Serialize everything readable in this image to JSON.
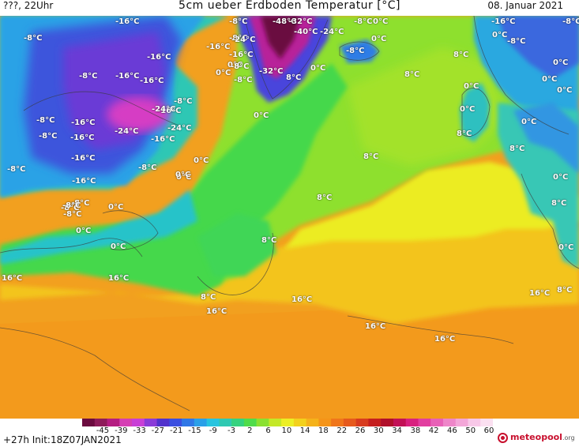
{
  "header": {
    "left_text": "???, 22Uhr",
    "title": "5cm ueber Erdboden Temperatur [°C]",
    "date": "08. Januar 2021"
  },
  "map": {
    "labels": [
      {
        "text": "-16°C"
      },
      {
        "text": "-8°C"
      },
      {
        "text": "-48°C"
      },
      {
        "text": "-32°C"
      },
      {
        "text": "-8°C"
      },
      {
        "text": "0°C"
      },
      {
        "text": "-16°C"
      },
      {
        "text": "-8°C"
      },
      {
        "text": "-8°C"
      },
      {
        "text": "-24°C"
      },
      {
        "text": "-40°C"
      },
      {
        "text": "-24°C"
      },
      {
        "text": "-8°C"
      },
      {
        "text": "0°C"
      },
      {
        "text": "-16°C"
      },
      {
        "text": "-16°C"
      },
      {
        "text": "-16°C"
      },
      {
        "text": "-8°C"
      },
      {
        "text": "0°C"
      },
      {
        "text": "-8°C"
      },
      {
        "text": "-16°C"
      },
      {
        "text": "-8°C"
      },
      {
        "text": "8°C"
      },
      {
        "text": "0°C"
      },
      {
        "text": "-8°C"
      },
      {
        "text": "-16°C"
      },
      {
        "text": "-16°C"
      },
      {
        "text": "0°C"
      },
      {
        "text": "-8°C"
      },
      {
        "text": "-32°C"
      },
      {
        "text": "8°C"
      },
      {
        "text": "0°C"
      },
      {
        "text": "8°C"
      },
      {
        "text": "0°C"
      },
      {
        "text": "-24°C"
      },
      {
        "text": "-16°C"
      },
      {
        "text": "0°C"
      },
      {
        "text": "-8°C"
      },
      {
        "text": "-8°C"
      },
      {
        "text": "-24°C"
      },
      {
        "text": "-24°C"
      },
      {
        "text": "0°C"
      },
      {
        "text": "0°C"
      },
      {
        "text": "0°C"
      },
      {
        "text": "-8°C"
      },
      {
        "text": "-16°C"
      },
      {
        "text": "-16°C"
      },
      {
        "text": "0°C"
      },
      {
        "text": "8°C"
      },
      {
        "text": "-16°C"
      },
      {
        "text": "-8°C"
      },
      {
        "text": "8°C"
      },
      {
        "text": "8°C"
      },
      {
        "text": "-8°C"
      },
      {
        "text": "-16°C"
      },
      {
        "text": "-8°C"
      },
      {
        "text": "0°C"
      },
      {
        "text": "0°C"
      },
      {
        "text": "0°C"
      },
      {
        "text": "-8°C"
      },
      {
        "text": "0°C"
      },
      {
        "text": "8°C"
      },
      {
        "text": "0°C"
      },
      {
        "text": "-8°C"
      },
      {
        "text": "-8°C"
      },
      {
        "text": "0°C"
      },
      {
        "text": "8°C"
      },
      {
        "text": "0°C"
      },
      {
        "text": "0°C"
      },
      {
        "text": "8°C"
      },
      {
        "text": "0°C"
      },
      {
        "text": "16°C"
      },
      {
        "text": "16°C"
      },
      {
        "text": "8°C"
      },
      {
        "text": "16°C"
      },
      {
        "text": "16°C"
      },
      {
        "text": "8°C"
      },
      {
        "text": "16°C"
      },
      {
        "text": "16°C"
      },
      {
        "text": "16°C"
      }
    ]
  },
  "colorbar": {
    "tick_labels": [
      "-45",
      "-39",
      "-33",
      "-27",
      "-21",
      "-15",
      "-9",
      "-3",
      "2",
      "6",
      "10",
      "14",
      "18",
      "22",
      "26",
      "30",
      "34",
      "38",
      "42",
      "46",
      "50",
      "60"
    ],
    "colors": [
      "#6b0b3f",
      "#8e1b5a",
      "#b51d82",
      "#d53fb4",
      "#c83fd6",
      "#8a3bd8",
      "#5132cc",
      "#3b4fe0",
      "#2f77e6",
      "#2aa0e8",
      "#28c4df",
      "#2fc9b2",
      "#35d27f",
      "#4fdc4a",
      "#8ae131",
      "#c4e828",
      "#ecef25",
      "#f3d11c",
      "#f5b21a",
      "#f59418",
      "#f0761b",
      "#e65a1d",
      "#d83c1f",
      "#c51f1f",
      "#b00f2a",
      "#c21056",
      "#d8217f",
      "#e23ea0",
      "#e861b7",
      "#ee86c9",
      "#f3a6d8",
      "#f8c8e8",
      "#fbe0f1"
    ]
  },
  "footer": {
    "run_info": "+27h Init:18Z07JAN2021",
    "logo_main": "meteopool",
    "logo_tld": ".org"
  }
}
